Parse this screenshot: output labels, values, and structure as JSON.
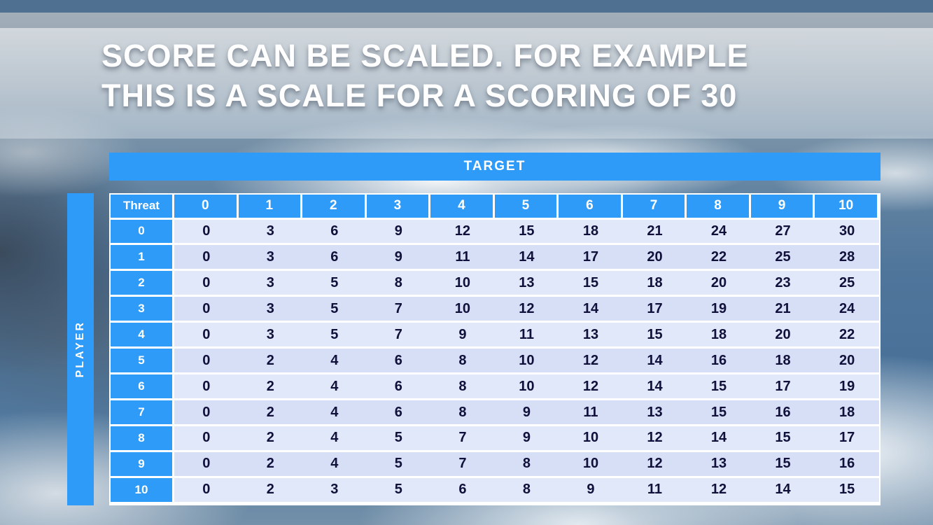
{
  "slide": {
    "title_line1": "SCORE CAN BE SCALED. FOR EXAMPLE",
    "title_line2": "THIS IS A SCALE FOR A SCORING OF 30"
  },
  "table": {
    "target_label": "TARGET",
    "player_label": "PLAYER",
    "corner_label": "Threat",
    "column_headers": [
      "0",
      "1",
      "2",
      "3",
      "4",
      "5",
      "6",
      "7",
      "8",
      "9",
      "10"
    ],
    "row_headers": [
      "0",
      "1",
      "2",
      "3",
      "4",
      "5",
      "6",
      "7",
      "8",
      "9",
      "10"
    ],
    "rows": [
      [
        0,
        3,
        6,
        9,
        12,
        15,
        18,
        21,
        24,
        27,
        30
      ],
      [
        0,
        3,
        6,
        9,
        11,
        14,
        17,
        20,
        22,
        25,
        28
      ],
      [
        0,
        3,
        5,
        8,
        10,
        13,
        15,
        18,
        20,
        23,
        25
      ],
      [
        0,
        3,
        5,
        7,
        10,
        12,
        14,
        17,
        19,
        21,
        24
      ],
      [
        0,
        3,
        5,
        7,
        9,
        11,
        13,
        15,
        18,
        20,
        22
      ],
      [
        0,
        2,
        4,
        6,
        8,
        10,
        12,
        14,
        16,
        18,
        20
      ],
      [
        0,
        2,
        4,
        6,
        8,
        10,
        12,
        14,
        15,
        17,
        19
      ],
      [
        0,
        2,
        4,
        6,
        8,
        9,
        11,
        13,
        15,
        16,
        18
      ],
      [
        0,
        2,
        4,
        5,
        7,
        9,
        10,
        12,
        14,
        15,
        17
      ],
      [
        0,
        2,
        4,
        5,
        7,
        8,
        10,
        12,
        13,
        15,
        16
      ],
      [
        0,
        2,
        3,
        5,
        6,
        8,
        9,
        11,
        12,
        14,
        15
      ]
    ]
  },
  "colors": {
    "header_blue": "#2E9BF8",
    "row_even": "#e1e8fa",
    "row_odd": "#d6dff6",
    "cell_text": "#10103a",
    "top_bar": "#4f7090"
  }
}
